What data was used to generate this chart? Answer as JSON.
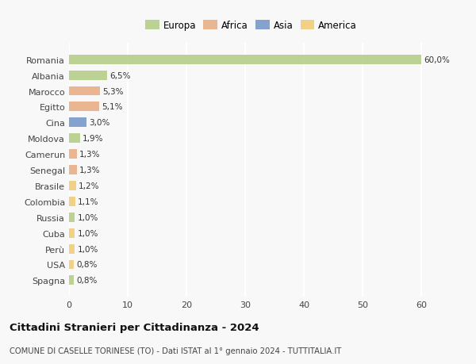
{
  "countries": [
    "Romania",
    "Albania",
    "Marocco",
    "Egitto",
    "Cina",
    "Moldova",
    "Camerun",
    "Senegal",
    "Brasile",
    "Colombia",
    "Russia",
    "Cuba",
    "Perù",
    "USA",
    "Spagna"
  ],
  "values": [
    60.0,
    6.5,
    5.3,
    5.1,
    3.0,
    1.9,
    1.3,
    1.3,
    1.2,
    1.1,
    1.0,
    1.0,
    1.0,
    0.8,
    0.8
  ],
  "labels": [
    "60,0%",
    "6,5%",
    "5,3%",
    "5,1%",
    "3,0%",
    "1,9%",
    "1,3%",
    "1,3%",
    "1,2%",
    "1,1%",
    "1,0%",
    "1,0%",
    "1,0%",
    "0,8%",
    "0,8%"
  ],
  "colors": [
    "#afc97e",
    "#afc97e",
    "#e8a87c",
    "#e8a87c",
    "#6b8fc4",
    "#afc97e",
    "#e8a87c",
    "#e8a87c",
    "#f0c96e",
    "#f0c96e",
    "#afc97e",
    "#f0c96e",
    "#f0c96e",
    "#f0c96e",
    "#afc97e"
  ],
  "continent_colors": {
    "Europa": "#afc97e",
    "Africa": "#e8a87c",
    "Asia": "#6b8fc4",
    "America": "#f0c96e"
  },
  "title": "Cittadini Stranieri per Cittadinanza - 2024",
  "subtitle": "COMUNE DI CASELLE TORINESE (TO) - Dati ISTAT al 1° gennaio 2024 - TUTTITALIA.IT",
  "xlim": [
    0,
    60
  ],
  "xticks": [
    0,
    10,
    20,
    30,
    40,
    50,
    60
  ],
  "background_color": "#f8f8f8",
  "grid_color": "#ffffff",
  "bar_alpha": 0.82
}
